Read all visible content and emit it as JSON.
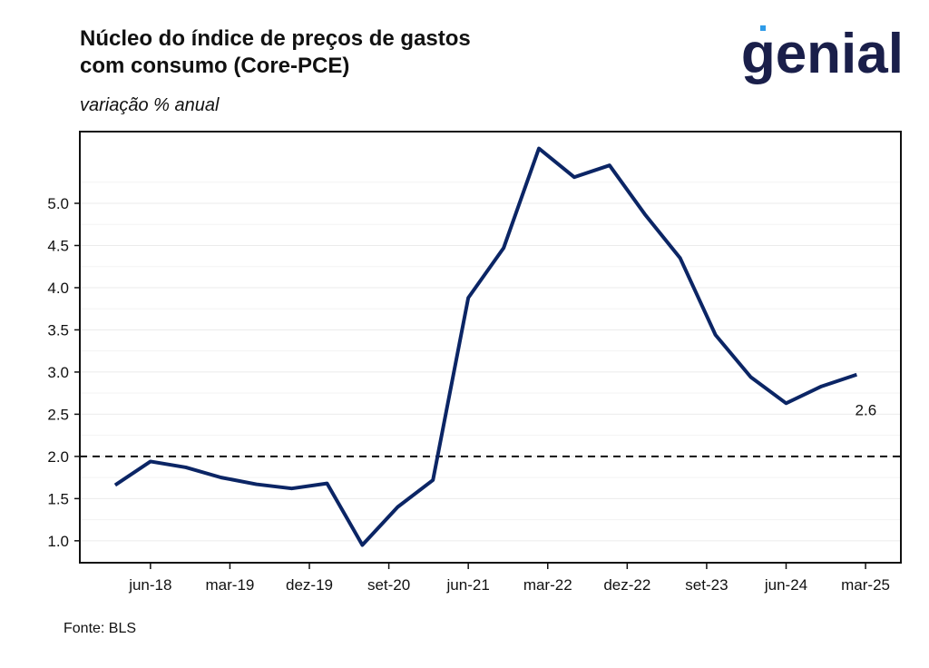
{
  "chart_data": {
    "type": "line",
    "title": "Núcleo do índice de preços de gastos com consumo (Core-PCE)",
    "title_lines": [
      "Núcleo do índice de preços de gastos",
      "com consumo (Core-PCE)"
    ],
    "subtitle": "variação % anual",
    "source": "Fonte: BLS",
    "logo": "genial",
    "annotation": "2.6",
    "x": [
      "2018-02",
      "2018-06",
      "2018-10",
      "2019-02",
      "2019-06",
      "2019-10",
      "2020-02",
      "2020-06",
      "2020-10",
      "2021-02",
      "2021-06",
      "2021-10",
      "2022-02",
      "2022-06",
      "2022-10",
      "2023-02",
      "2023-06",
      "2023-10",
      "2024-02",
      "2024-06",
      "2024-10",
      "2025-02"
    ],
    "series": [
      {
        "name": "Core-PCE",
        "color": "#0b2565",
        "values": [
          1.66,
          1.94,
          1.87,
          1.75,
          1.67,
          1.62,
          1.68,
          0.95,
          1.4,
          1.72,
          3.88,
          4.47,
          5.65,
          5.31,
          5.45,
          4.87,
          4.35,
          3.44,
          2.94,
          2.63,
          2.83,
          2.97
        ]
      }
    ],
    "xlim": [
      "2017-10",
      "2025-07"
    ],
    "xticks": [
      {
        "value": "2018-06",
        "label": "jun-18"
      },
      {
        "value": "2019-03",
        "label": "mar-19"
      },
      {
        "value": "2019-12",
        "label": "dez-19"
      },
      {
        "value": "2020-09",
        "label": "set-20"
      },
      {
        "value": "2021-06",
        "label": "jun-21"
      },
      {
        "value": "2022-03",
        "label": "mar-22"
      },
      {
        "value": "2022-12",
        "label": "dez-22"
      },
      {
        "value": "2023-09",
        "label": "set-23"
      },
      {
        "value": "2024-06",
        "label": "jun-24"
      },
      {
        "value": "2025-03",
        "label": "mar-25"
      }
    ],
    "ylim": [
      0.74,
      5.85
    ],
    "yticks": [
      {
        "value": 1,
        "label": "1.0"
      },
      1.5,
      {
        "value": 2,
        "label": "2.0"
      },
      2.5,
      {
        "value": 3,
        "label": "3.0"
      },
      3.5,
      {
        "value": 4,
        "label": "4.0"
      },
      4.5,
      {
        "value": 5,
        "label": "5.0"
      }
    ],
    "reference_line": 2,
    "grid": true
  }
}
